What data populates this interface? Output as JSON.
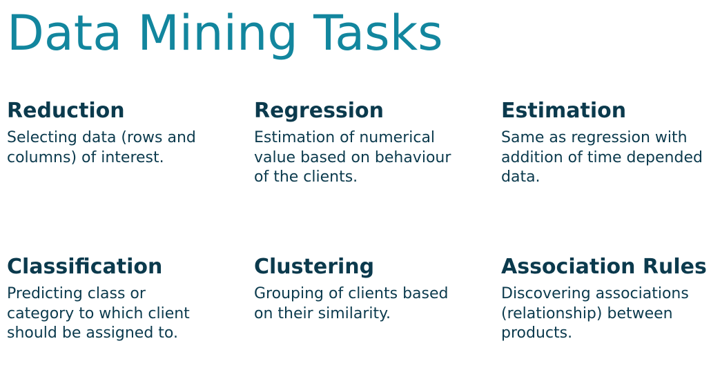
{
  "slide": {
    "title": "Data Mining Tasks",
    "tasks": [
      {
        "heading": "Reduction",
        "description": "Selecting data (rows and columns) of interest."
      },
      {
        "heading": "Regression",
        "description": "Estimation of numerical value based on behaviour of the clients."
      },
      {
        "heading": "Estimation",
        "description": "Same as regression with addition of time depended data."
      },
      {
        "heading": "Classification",
        "description": "Predicting class or category to which client should be assigned to."
      },
      {
        "heading": "Clustering",
        "description": "Grouping of clients based on their similarity."
      },
      {
        "heading": "Association Rules",
        "description": "Discovering associations (relationship) between products."
      }
    ]
  },
  "colors": {
    "title": "#12869e",
    "text": "#0b3a4d",
    "background": "#ffffff"
  }
}
